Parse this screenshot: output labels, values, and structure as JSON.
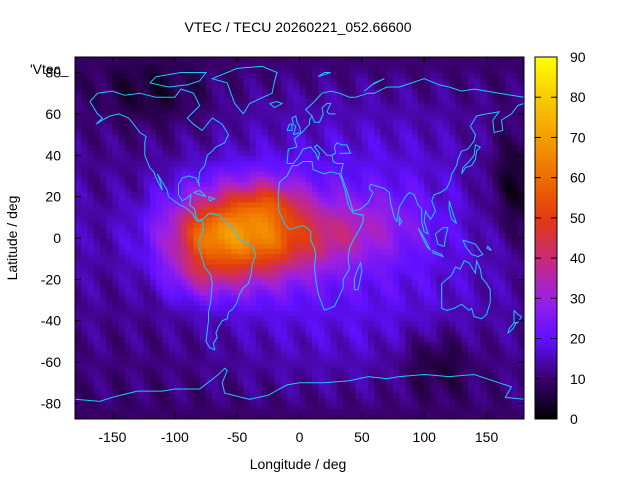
{
  "chart_data": {
    "type": "heatmap",
    "title": "VTEC / TECU 20260221_052.66600",
    "xlabel": "Longitude / deg",
    "ylabel": "Latitude / deg",
    "xlim": [
      -180,
      180
    ],
    "ylim": [
      -87.5,
      87.5
    ],
    "x_ticks": [
      -150,
      -100,
      -50,
      0,
      50,
      100,
      150
    ],
    "x_tick_labels": [
      "-150",
      "-100",
      "-50",
      "0",
      "50",
      "100",
      "150"
    ],
    "y_ticks": [
      60,
      40,
      20,
      0,
      -20,
      -40,
      -60,
      -80
    ],
    "y_tick_labels": [
      "60",
      "40",
      "20",
      "0",
      "-20",
      "-40",
      "-60",
      "-80"
    ],
    "y_tick_80_label": "80",
    "legend_key_text": "'Vtec_",
    "colorbar": {
      "min": 0,
      "max": 90,
      "ticks": [
        0,
        10,
        20,
        30,
        40,
        50,
        60,
        70,
        80,
        90
      ],
      "tick_labels": [
        "0",
        "10",
        "20",
        "30",
        "40",
        "50",
        "60",
        "70",
        "80",
        "90"
      ]
    },
    "grid_resolution_deg": {
      "lon": 5,
      "lat": 2.5
    },
    "field_description": "Equatorial ionization anomaly peak over South America / Atlantic, values approx 0-75 TECU",
    "peaks": [
      {
        "lon": -75,
        "lat": 0,
        "value": 68
      },
      {
        "lon": -25,
        "lat": 20,
        "value": 70
      },
      {
        "lon": -15,
        "lat": -5,
        "value": 66
      },
      {
        "lon": -85,
        "lat": -20,
        "value": 58
      }
    ],
    "coastline_color": "#1ec8ff"
  }
}
